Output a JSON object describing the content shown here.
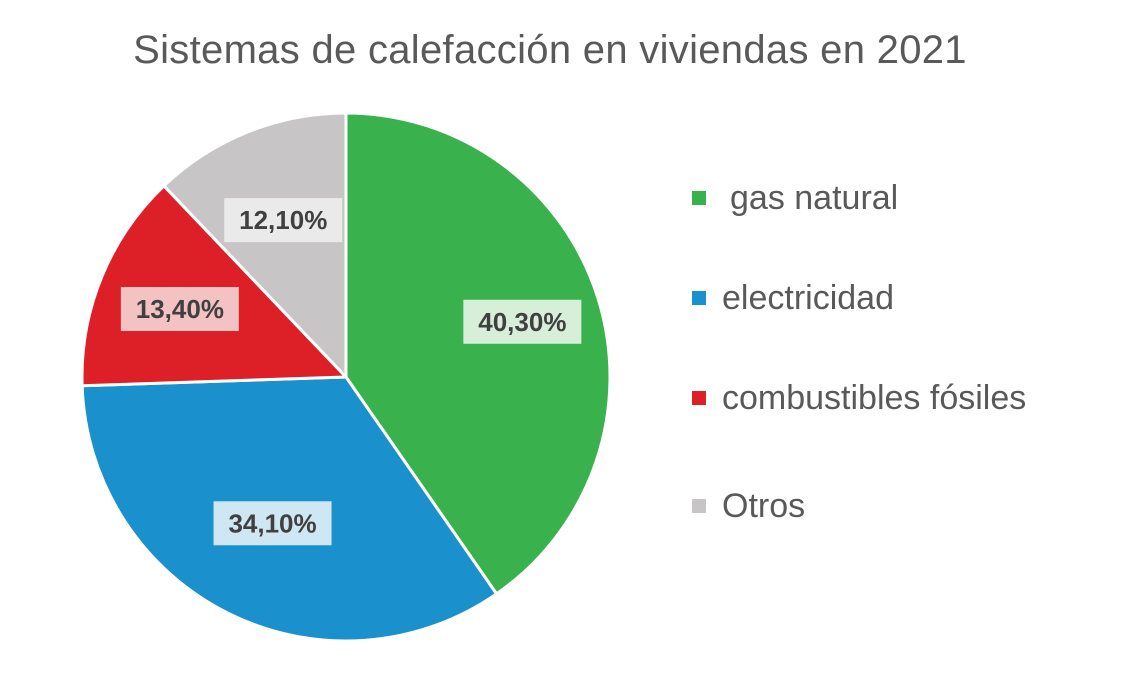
{
  "chart_data": {
    "type": "pie",
    "title": "Sistemas de calefacción en viviendas en 2021",
    "categories": [
      "gas natural",
      "electricidad",
      "combustibles fósiles",
      "Otros"
    ],
    "values": [
      40.3,
      34.1,
      13.4,
      12.1
    ],
    "data_labels": [
      "40,30%",
      "34,10%",
      "13,40%",
      "12,10%"
    ],
    "colors": [
      "#39b14c",
      "#1a91cd",
      "#dd2028",
      "#c7c5c5"
    ],
    "label_backgrounds": [
      "#d7efd9",
      "#cfe6f3",
      "#f3c2c3",
      "#ebeaea"
    ],
    "legend_position": "right",
    "start_angle": "12 o'clock, clockwise"
  }
}
